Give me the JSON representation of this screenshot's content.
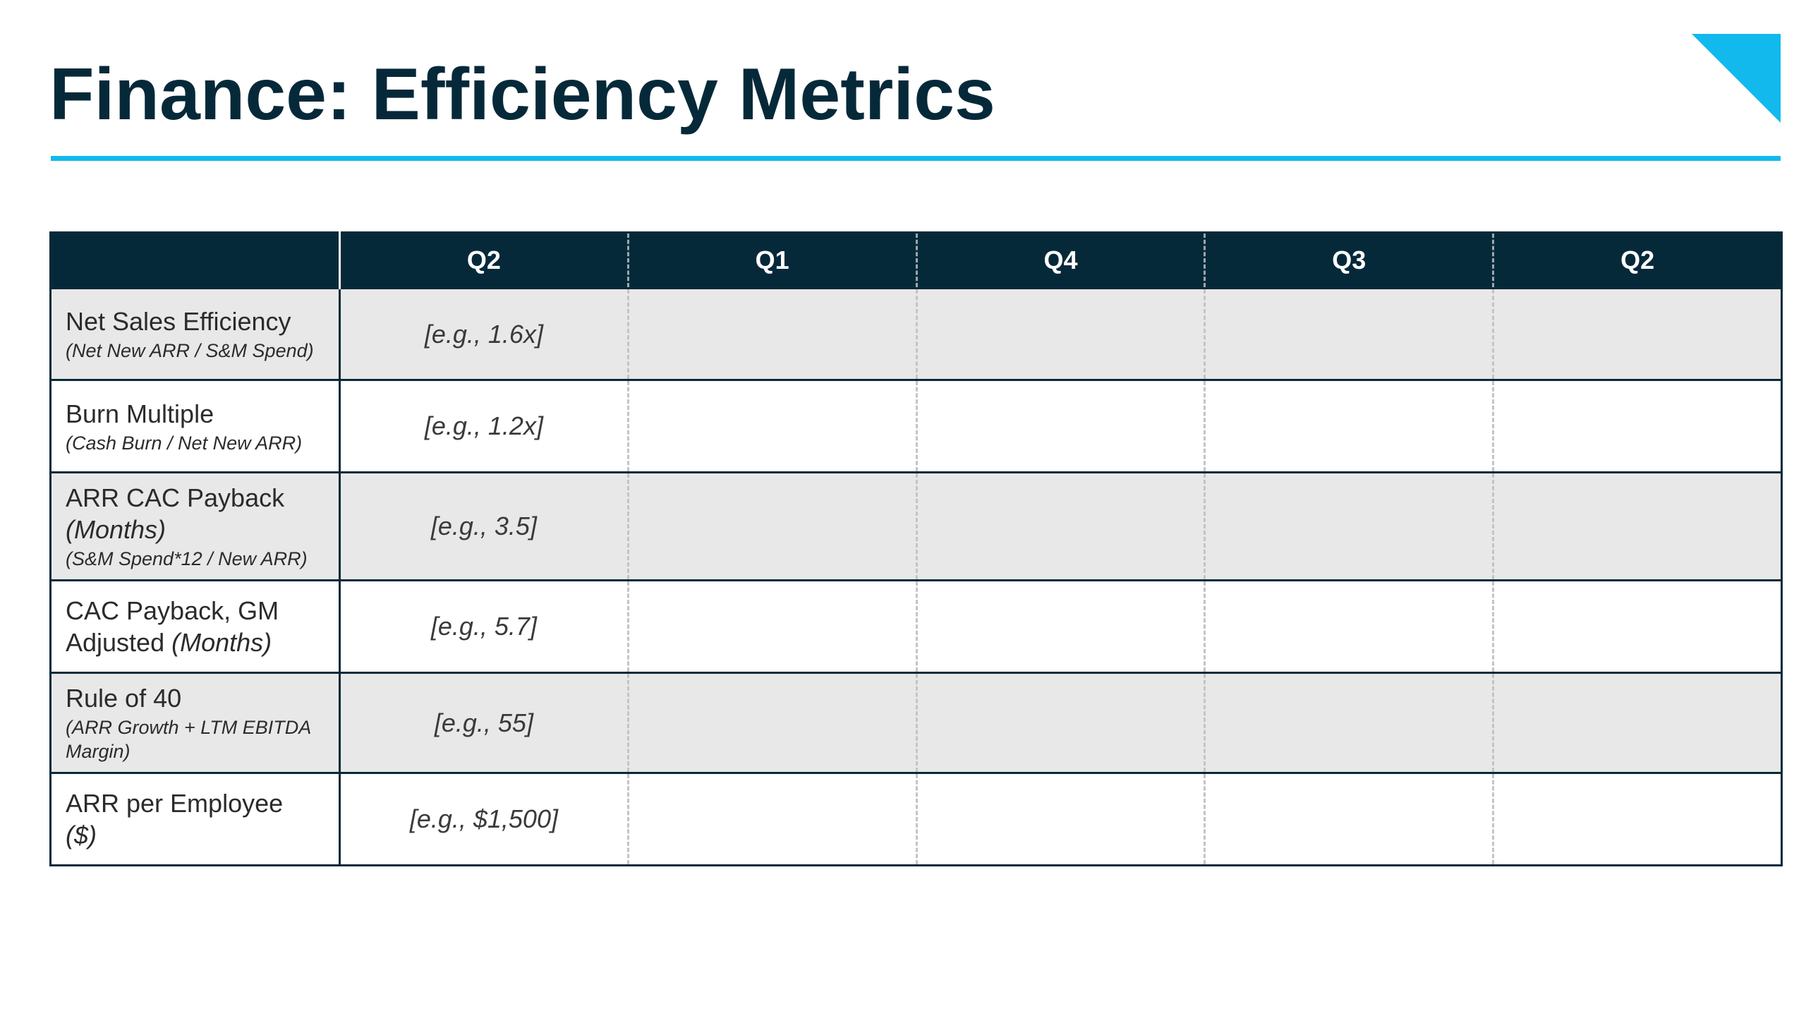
{
  "slide": {
    "title": "Finance: Efficiency Metrics",
    "colors": {
      "title_text": "#06293a",
      "accent": "#12b9ec",
      "header_bg": "#06293a",
      "shaded_row": "#e8e8e8"
    }
  },
  "table": {
    "corner_header": "",
    "columns": [
      "Q2",
      "Q1",
      "Q4",
      "Q3",
      "Q2"
    ],
    "rows": [
      {
        "label": "Net Sales Efficiency",
        "unit": "",
        "note": "(Net New ARR / S&M Spend)",
        "example": "[e.g., 1.6x]"
      },
      {
        "label": "Burn Multiple",
        "unit": "",
        "note": "(Cash Burn / Net New ARR)",
        "example": "[e.g., 1.2x]"
      },
      {
        "label": "ARR CAC Payback",
        "unit": "(Months)",
        "note": "(S&M Spend*12 / New ARR)",
        "example": "[e.g., 3.5]"
      },
      {
        "label": "CAC Payback, GM Adjusted",
        "unit": "(Months)",
        "note": "",
        "example": "[e.g., 5.7]"
      },
      {
        "label": "Rule of 40",
        "unit": "",
        "note": "(ARR Growth + LTM EBITDA Margin)",
        "example": "[e.g., 55]"
      },
      {
        "label": "ARR per Employee",
        "unit": "($)",
        "note": "",
        "example": "[e.g., $1,500]"
      }
    ]
  }
}
